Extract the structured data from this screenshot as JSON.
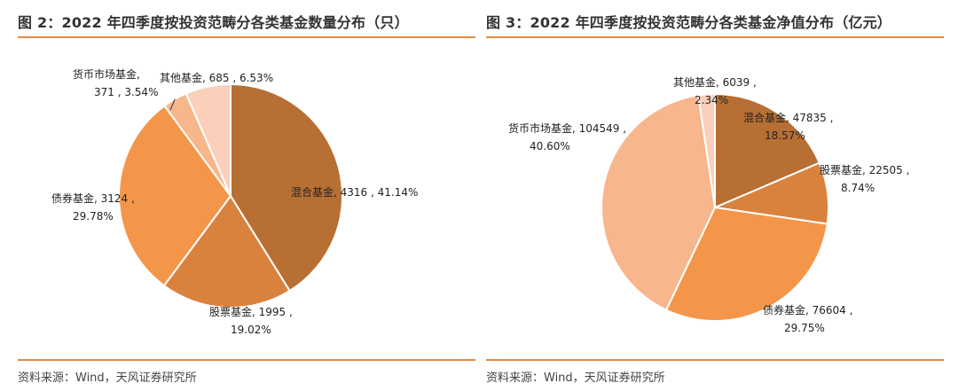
{
  "panels": [
    {
      "title": "图 2：2022 年四季度按投资范畴分各类基金数量分布（只）",
      "source": "资料来源：Wind，天风证券研究所"
    },
    {
      "title": "图 3：2022 年四季度按投资范畴分各类基金净值分布（亿元）",
      "source": "资料来源：Wind，天风证券研究所"
    }
  ],
  "chart_data": [
    {
      "type": "pie",
      "title": "图 2：2022 年四季度按投资范畴分各类基金数量分布（只）",
      "slices": [
        {
          "name": "混合基金",
          "value": 4316,
          "percent": "41.14%",
          "color": "#b86f34"
        },
        {
          "name": "股票基金",
          "value": 1995,
          "percent": "19.02%",
          "color": "#d9823e"
        },
        {
          "name": "债券基金",
          "value": 3124,
          "percent": "29.78%",
          "color": "#f4964a"
        },
        {
          "name": "货币市场基金",
          "value": 371,
          "percent": "3.54%",
          "color": "#f8b68c"
        },
        {
          "name": "其他基金",
          "value": 685,
          "percent": "6.53%",
          "color": "#fad0bb"
        }
      ],
      "labels": [
        {
          "line1": "混合基金, 4316 , 41.14%",
          "line2": ""
        },
        {
          "line1": "股票基金, 1995 ,",
          "line2": "19.02%"
        },
        {
          "line1": "债券基金, 3124 ,",
          "line2": "29.78%"
        },
        {
          "line1": "货币市场基金,",
          "line2": "371 , 3.54%"
        },
        {
          "line1": "其他基金, 685 , 6.53%",
          "line2": ""
        }
      ]
    },
    {
      "type": "pie",
      "title": "图 3：2022 年四季度按投资范畴分各类基金净值分布（亿元）",
      "slices": [
        {
          "name": "混合基金",
          "value": 47835,
          "percent": "18.57%",
          "color": "#b86f34"
        },
        {
          "name": "股票基金",
          "value": 22505,
          "percent": "8.74%",
          "color": "#d9823e"
        },
        {
          "name": "债券基金",
          "value": 76604,
          "percent": "29.75%",
          "color": "#f4964a"
        },
        {
          "name": "货币市场基金",
          "value": 104549,
          "percent": "40.60%",
          "color": "#f8b68c"
        },
        {
          "name": "其他基金",
          "value": 6039,
          "percent": "2.34%",
          "color": "#fad0bb"
        }
      ],
      "labels": [
        {
          "line1": "混合基金, 47835 ,",
          "line2": "18.57%"
        },
        {
          "line1": "股票基金, 22505 ,",
          "line2": "8.74%"
        },
        {
          "line1": "债券基金, 76604 ,",
          "line2": "29.75%"
        },
        {
          "line1": "货币市场基金, 104549 ,",
          "line2": "40.60%"
        },
        {
          "line1": "其他基金, 6039 ,",
          "line2": "2.34%"
        }
      ]
    }
  ]
}
